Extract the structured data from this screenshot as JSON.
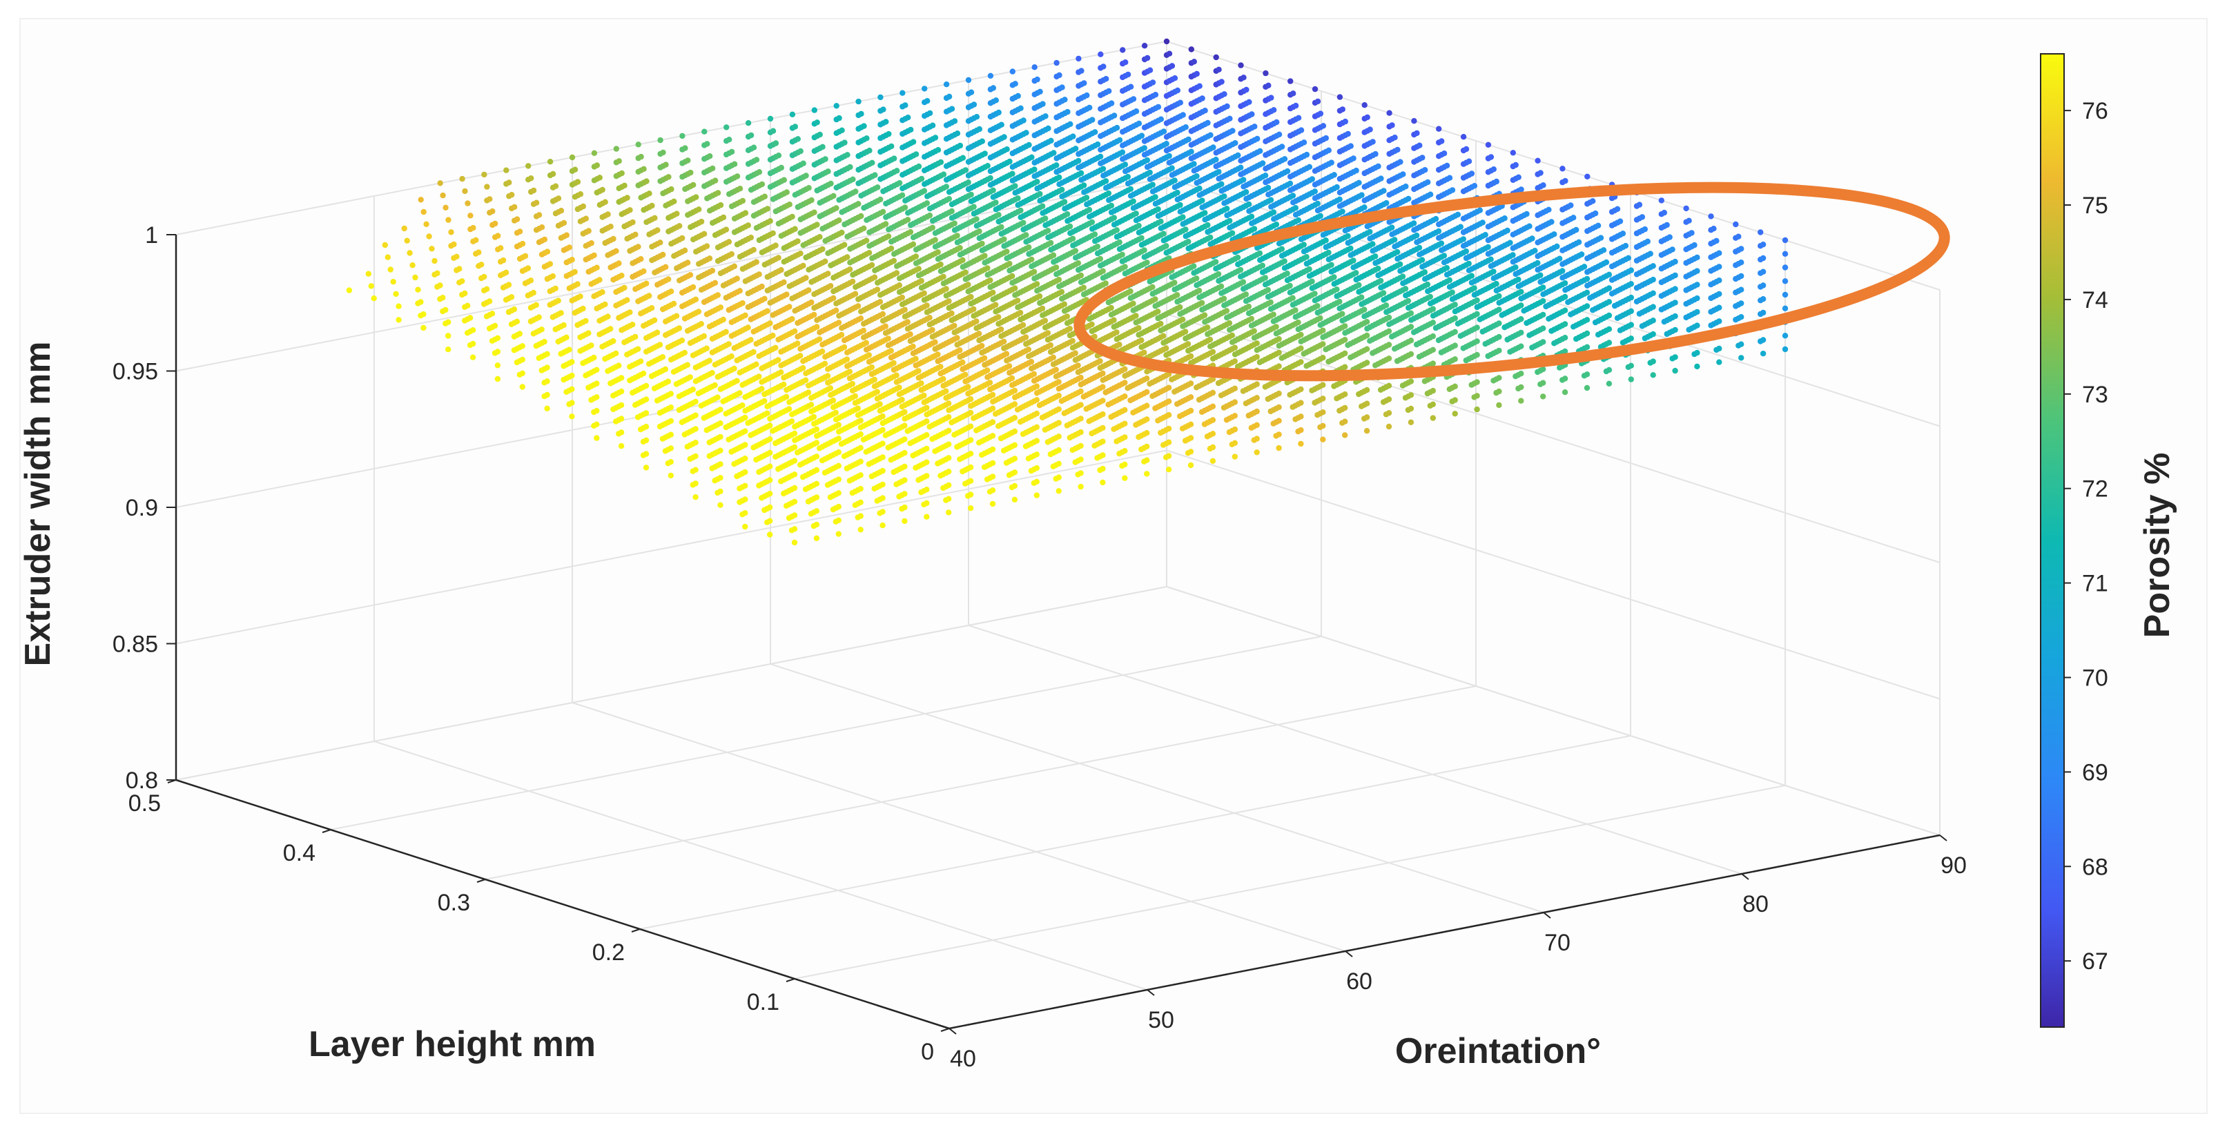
{
  "chart_data": {
    "type": "scatter3d",
    "title": "",
    "xlabel": "Oreintation°",
    "ylabel": "Layer height mm",
    "zlabel": "Extruder width mm",
    "colorbar_label": "Porosity %",
    "x_ticks": [
      "40",
      "50",
      "60",
      "70",
      "80",
      "90"
    ],
    "y_ticks": [
      "0",
      "0.1",
      "0.2",
      "0.3",
      "0.4",
      "0.5"
    ],
    "z_ticks": [
      "0.8",
      "0.85",
      "0.9",
      "0.95",
      "1"
    ],
    "colorbar_ticks": [
      "67",
      "68",
      "69",
      "70",
      "71",
      "72",
      "73",
      "74",
      "75",
      "76"
    ],
    "xlim": [
      40,
      90
    ],
    "ylim": [
      0,
      0.5
    ],
    "zlim": [
      0.8,
      1.0
    ],
    "clim": [
      66.3,
      76.6
    ],
    "colormap": "parula",
    "grid": true,
    "series": [
      {
        "name": "Porosity",
        "x_range": [
          40,
          90
        ],
        "y_range": [
          0.1,
          0.5
        ],
        "z_values": [
          0.96,
          0.965,
          0.97,
          0.975,
          0.98,
          0.985,
          0.99,
          0.995,
          1.0
        ],
        "porosity_range": [
          66.5,
          76.5
        ],
        "min_porosity_region": "high orientation, high layer height, extruder width near 1"
      }
    ],
    "annotations": [
      {
        "type": "ellipse",
        "color": "#ed7d31",
        "description": "highlighted minimum porosity region"
      }
    ]
  }
}
